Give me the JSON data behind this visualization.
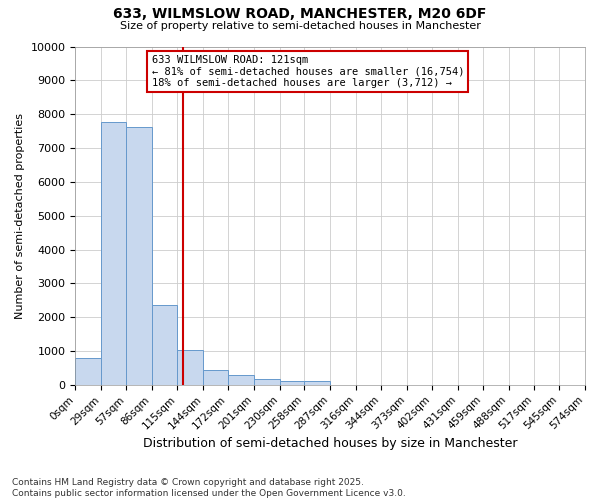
{
  "title1": "633, WILMSLOW ROAD, MANCHESTER, M20 6DF",
  "title2": "Size of property relative to semi-detached houses in Manchester",
  "xlabel": "Distribution of semi-detached houses by size in Manchester",
  "ylabel": "Number of semi-detached properties",
  "footnote1": "Contains HM Land Registry data © Crown copyright and database right 2025.",
  "footnote2": "Contains public sector information licensed under the Open Government Licence v3.0.",
  "bin_edges": [
    0,
    29,
    57,
    86,
    115,
    144,
    172,
    201,
    230,
    258,
    287,
    316,
    344,
    373,
    402,
    431,
    459,
    488,
    517,
    545,
    574
  ],
  "bar_heights": [
    800,
    7780,
    7620,
    2350,
    1020,
    450,
    285,
    175,
    110,
    110,
    0,
    0,
    0,
    0,
    0,
    0,
    0,
    0,
    0,
    0
  ],
  "bar_color": "#c8d8ee",
  "bar_edgecolor": "#6699cc",
  "grid_color": "#cccccc",
  "vline_x": 121,
  "vline_color": "#cc0000",
  "annotation_text": "633 WILMSLOW ROAD: 121sqm\n← 81% of semi-detached houses are smaller (16,754)\n18% of semi-detached houses are larger (3,712) →",
  "annotation_box_color": "#cc0000",
  "annotation_text_color": "#000000",
  "annotation_bg": "#ffffff",
  "ylim": [
    0,
    10000
  ],
  "yticks": [
    0,
    1000,
    2000,
    3000,
    4000,
    5000,
    6000,
    7000,
    8000,
    9000,
    10000
  ],
  "background_color": "#ffffff"
}
